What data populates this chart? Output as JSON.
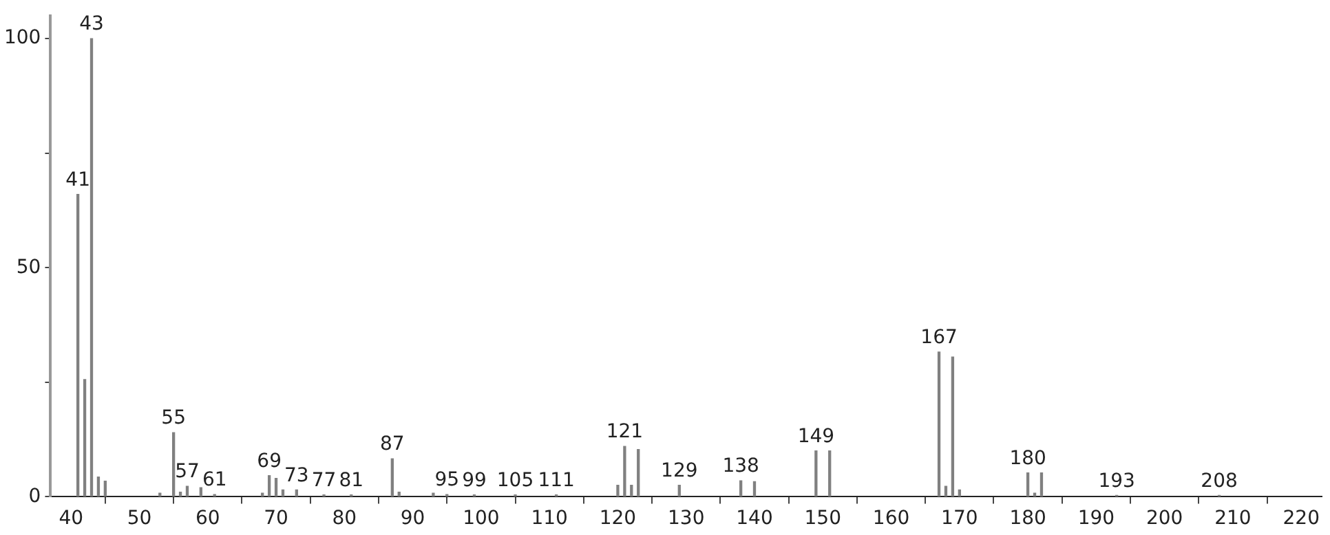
{
  "chart_data": {
    "type": "bar",
    "x": [
      41,
      42,
      43,
      44,
      45,
      53,
      55,
      56,
      57,
      59,
      61,
      68,
      69,
      70,
      71,
      73,
      77,
      81,
      87,
      88,
      93,
      95,
      99,
      105,
      111,
      120,
      121,
      122,
      123,
      129,
      138,
      140,
      149,
      151,
      167,
      168,
      169,
      170,
      180,
      181,
      182,
      193,
      208
    ],
    "values": [
      66,
      25.6,
      100,
      4.3,
      3.4,
      0.8,
      14,
      1,
      2.3,
      2,
      0.5,
      0.8,
      4.6,
      4,
      1.5,
      1.5,
      0.4,
      0.4,
      8.3,
      1,
      0.8,
      0.5,
      0.4,
      0.4,
      0.4,
      2.5,
      11,
      2.5,
      10.3,
      2.5,
      3.5,
      3.3,
      10,
      10,
      31.6,
      2.3,
      30.5,
      1.5,
      5.2,
      0.8,
      5.2,
      0.3,
      0.3
    ],
    "annotations": [
      {
        "text": "41",
        "x": 41,
        "y": 66
      },
      {
        "text": "43",
        "x": 43,
        "y": 100
      },
      {
        "text": "55",
        "x": 55,
        "y": 14
      },
      {
        "text": "57",
        "x": 57,
        "y": 2.3
      },
      {
        "text": "61",
        "x": 61,
        "y": 0.5
      },
      {
        "text": "69",
        "x": 69,
        "y": 4.6
      },
      {
        "text": "73",
        "x": 73,
        "y": 1.5
      },
      {
        "text": "77",
        "x": 77,
        "y": 0.4
      },
      {
        "text": "81",
        "x": 81,
        "y": 0.4
      },
      {
        "text": "87",
        "x": 87,
        "y": 8.3
      },
      {
        "text": "95",
        "x": 95,
        "y": 0.5
      },
      {
        "text": "99",
        "x": 99,
        "y": 0.4
      },
      {
        "text": "105",
        "x": 105,
        "y": 0.4
      },
      {
        "text": "111",
        "x": 111,
        "y": 0.4
      },
      {
        "text": "121",
        "x": 121,
        "y": 11
      },
      {
        "text": "129",
        "x": 129,
        "y": 2.5
      },
      {
        "text": "138",
        "x": 138,
        "y": 3.5
      },
      {
        "text": "149",
        "x": 149,
        "y": 10
      },
      {
        "text": "167",
        "x": 167,
        "y": 31.6
      },
      {
        "text": "180",
        "x": 180,
        "y": 5.2
      },
      {
        "text": "193",
        "x": 193,
        "y": 0.3
      },
      {
        "text": "208",
        "x": 208,
        "y": 0.3
      }
    ],
    "color": "#808080",
    "xlim": [
      37,
      223
    ],
    "xticks": [
      40,
      50,
      60,
      70,
      80,
      90,
      100,
      110,
      120,
      130,
      140,
      150,
      160,
      170,
      180,
      190,
      200,
      210,
      220
    ],
    "ylim": [
      0,
      105
    ],
    "yticks": [
      0,
      {
        "value": 25,
        "label": null
      },
      50,
      {
        "value": 75,
        "label": null
      },
      100
    ],
    "grid": false,
    "legend": false
  }
}
